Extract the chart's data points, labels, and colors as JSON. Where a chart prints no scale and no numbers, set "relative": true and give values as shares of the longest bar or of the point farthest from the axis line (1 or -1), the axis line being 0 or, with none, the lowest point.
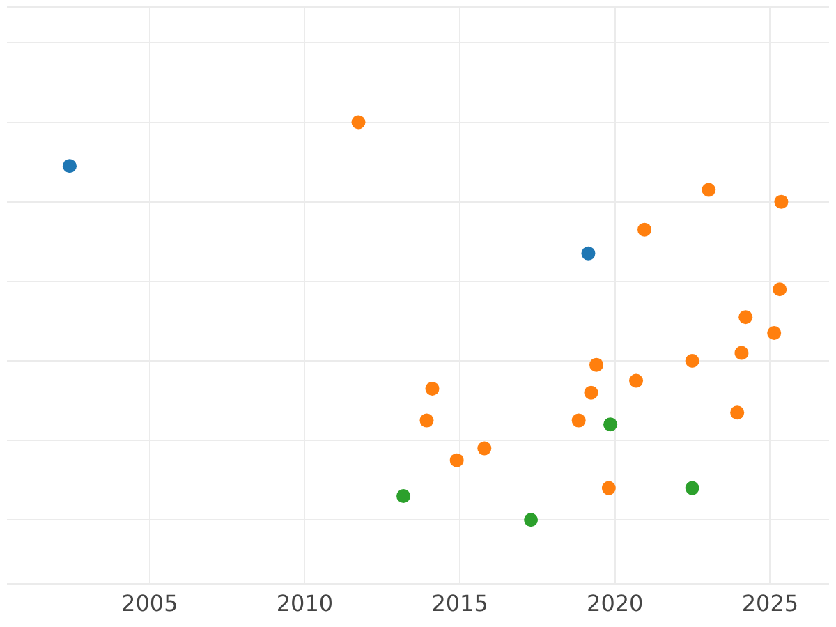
{
  "chart_data": {
    "type": "scatter",
    "relative": true,
    "grid": true,
    "tick_labels": "x",
    "marker": "circle",
    "xlim": [
      2000.4,
      2026.9
    ],
    "xticks": [
      2005,
      2010,
      2015,
      2020,
      2025
    ],
    "series": [
      {
        "color": "#1f77b4",
        "x": [
          2002.42,
          2019.14
        ],
        "values": [
          0.89,
          0.67
        ]
      },
      {
        "color": "#ff7f0e",
        "x": [
          2011.73,
          2023.02,
          2025.36,
          2020.95,
          2025.31,
          2024.21,
          2025.13,
          2024.08,
          2019.4,
          2022.49,
          2020.68,
          2014.11,
          2019.23,
          2013.93,
          2018.83,
          2023.94,
          2015.79,
          2014.9,
          2019.8
        ],
        "values": [
          1.0,
          0.83,
          0.8,
          0.73,
          0.58,
          0.51,
          0.47,
          0.42,
          0.39,
          0.4,
          0.35,
          0.33,
          0.32,
          0.25,
          0.25,
          0.27,
          0.18,
          0.15,
          0.08
        ]
      },
      {
        "color": "#2ca02c",
        "x": [
          2013.18,
          2017.29,
          2019.85,
          2022.49
        ],
        "values": [
          0.06,
          0,
          0.24,
          0.08
        ]
      }
    ]
  }
}
